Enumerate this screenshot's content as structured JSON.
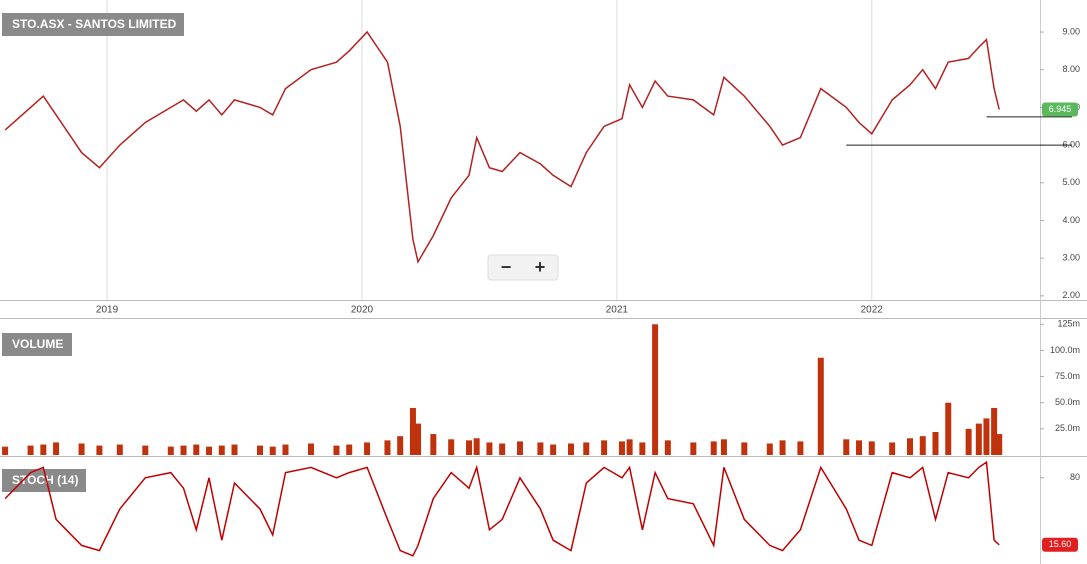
{
  "controls": {
    "zoom_out": "−",
    "zoom_in": "+"
  },
  "chart_data": [
    {
      "type": "line",
      "title": "STO.ASX - SANTOS LIMITED",
      "color": "#b22222",
      "x": [
        2018.6,
        2018.7,
        2018.75,
        2018.8,
        2018.9,
        2018.97,
        2019.05,
        2019.15,
        2019.25,
        2019.3,
        2019.35,
        2019.4,
        2019.45,
        2019.5,
        2019.6,
        2019.65,
        2019.7,
        2019.8,
        2019.9,
        2019.95,
        2020.02,
        2020.1,
        2020.15,
        2020.2,
        2020.22,
        2020.28,
        2020.35,
        2020.42,
        2020.45,
        2020.5,
        2020.55,
        2020.62,
        2020.7,
        2020.75,
        2020.82,
        2020.88,
        2020.95,
        2021.02,
        2021.05,
        2021.1,
        2021.15,
        2021.2,
        2021.3,
        2021.38,
        2021.42,
        2021.5,
        2021.6,
        2021.65,
        2021.72,
        2021.8,
        2021.9,
        2021.95,
        2022.0,
        2022.08,
        2022.15,
        2022.2,
        2022.25,
        2022.3,
        2022.38,
        2022.42,
        2022.45,
        2022.48,
        2022.5
      ],
      "values": [
        6.4,
        7.0,
        7.3,
        6.8,
        5.8,
        5.4,
        6.0,
        6.6,
        7.0,
        7.2,
        6.9,
        7.2,
        6.8,
        7.2,
        7.0,
        6.8,
        7.5,
        8.0,
        8.2,
        8.5,
        9.0,
        8.2,
        6.5,
        3.5,
        2.9,
        3.6,
        4.6,
        5.2,
        6.2,
        5.4,
        5.3,
        5.8,
        5.5,
        5.2,
        4.9,
        5.8,
        6.5,
        6.7,
        7.6,
        7.0,
        7.7,
        7.3,
        7.2,
        6.8,
        7.8,
        7.3,
        6.5,
        6.0,
        6.2,
        7.5,
        7.0,
        6.6,
        6.3,
        7.2,
        7.6,
        8.0,
        7.5,
        8.2,
        8.3,
        8.6,
        8.8,
        7.5,
        6.945
      ],
      "last_value": 6.945,
      "hlines": [
        {
          "value": 6.0,
          "x": 2021.9
        },
        {
          "value": 6.75,
          "x": 2022.45
        }
      ],
      "xlim": [
        2018.58,
        2022.66
      ],
      "xticks": [
        2019,
        2020,
        2021,
        2022
      ],
      "ylim": [
        1.89,
        9.85
      ],
      "yticks": [
        {
          "value": 2,
          "label": "2.00"
        },
        {
          "value": 3,
          "label": "3.00"
        },
        {
          "value": 4,
          "label": "4.00"
        },
        {
          "value": 5,
          "label": "5.00"
        },
        {
          "value": 6,
          "label": "6.00"
        },
        {
          "value": 7,
          "label": "7.00"
        },
        {
          "value": 8,
          "label": "8.00"
        },
        {
          "value": 9,
          "label": "9.00"
        }
      ]
    },
    {
      "type": "bar",
      "title": "VOLUME",
      "color": "#c0320c",
      "x": [
        2018.6,
        2018.7,
        2018.75,
        2018.8,
        2018.9,
        2018.97,
        2019.05,
        2019.15,
        2019.25,
        2019.3,
        2019.35,
        2019.4,
        2019.45,
        2019.5,
        2019.6,
        2019.65,
        2019.7,
        2019.8,
        2019.9,
        2019.95,
        2020.02,
        2020.1,
        2020.15,
        2020.2,
        2020.22,
        2020.28,
        2020.35,
        2020.42,
        2020.45,
        2020.5,
        2020.55,
        2020.62,
        2020.7,
        2020.75,
        2020.82,
        2020.88,
        2020.95,
        2021.02,
        2021.05,
        2021.1,
        2021.15,
        2021.2,
        2021.3,
        2021.38,
        2021.42,
        2021.5,
        2021.6,
        2021.65,
        2021.72,
        2021.8,
        2021.9,
        2021.95,
        2022.0,
        2022.08,
        2022.15,
        2022.2,
        2022.25,
        2022.3,
        2022.38,
        2022.42,
        2022.45,
        2022.48,
        2022.5
      ],
      "values": [
        8,
        9,
        10,
        12,
        11,
        9,
        10,
        9,
        8,
        9,
        10,
        8,
        9,
        10,
        9,
        8,
        10,
        11,
        9,
        10,
        12,
        14,
        18,
        45,
        30,
        20,
        15,
        14,
        16,
        12,
        11,
        13,
        12,
        10,
        11,
        12,
        14,
        13,
        15,
        12,
        125,
        14,
        12,
        13,
        15,
        12,
        11,
        14,
        13,
        93,
        15,
        14,
        13,
        12,
        16,
        18,
        22,
        50,
        25,
        30,
        35,
        45,
        20
      ],
      "xlim": [
        2018.58,
        2022.66
      ],
      "ylim": [
        0,
        131
      ],
      "yticks": [
        {
          "value": 25,
          "label": "25.0m"
        },
        {
          "value": 50,
          "label": "50.0m"
        },
        {
          "value": 75,
          "label": "75.0m"
        },
        {
          "value": 100,
          "label": "100.0m"
        },
        {
          "value": 125,
          "label": "125m"
        }
      ]
    },
    {
      "type": "line",
      "title": "STOCH (14)",
      "color": "#c00000",
      "x": [
        2018.6,
        2018.7,
        2018.75,
        2018.8,
        2018.9,
        2018.97,
        2019.05,
        2019.15,
        2019.25,
        2019.3,
        2019.35,
        2019.4,
        2019.45,
        2019.5,
        2019.6,
        2019.65,
        2019.7,
        2019.8,
        2019.9,
        2019.95,
        2020.02,
        2020.1,
        2020.15,
        2020.2,
        2020.22,
        2020.28,
        2020.35,
        2020.42,
        2020.45,
        2020.5,
        2020.55,
        2020.62,
        2020.7,
        2020.75,
        2020.82,
        2020.88,
        2020.95,
        2021.02,
        2021.05,
        2021.1,
        2021.15,
        2021.2,
        2021.3,
        2021.38,
        2021.42,
        2021.5,
        2021.6,
        2021.65,
        2021.72,
        2021.8,
        2021.9,
        2021.95,
        2022.0,
        2022.08,
        2022.15,
        2022.2,
        2022.25,
        2022.3,
        2022.38,
        2022.42,
        2022.45,
        2022.48,
        2022.5
      ],
      "values": [
        60,
        85,
        90,
        40,
        15,
        10,
        50,
        80,
        85,
        70,
        30,
        80,
        20,
        75,
        50,
        25,
        85,
        90,
        80,
        85,
        90,
        40,
        10,
        5,
        15,
        60,
        85,
        70,
        90,
        30,
        40,
        80,
        50,
        20,
        10,
        75,
        90,
        80,
        90,
        30,
        85,
        60,
        55,
        15,
        90,
        40,
        15,
        10,
        30,
        90,
        50,
        20,
        15,
        85,
        80,
        90,
        40,
        85,
        80,
        90,
        95,
        20,
        15.6
      ],
      "last_value": {
        "value": 15.6,
        "label": "15.60"
      },
      "xlim": [
        2018.58,
        2022.66
      ],
      "ylim": [
        0,
        100
      ],
      "yticks": [
        80
      ]
    }
  ]
}
